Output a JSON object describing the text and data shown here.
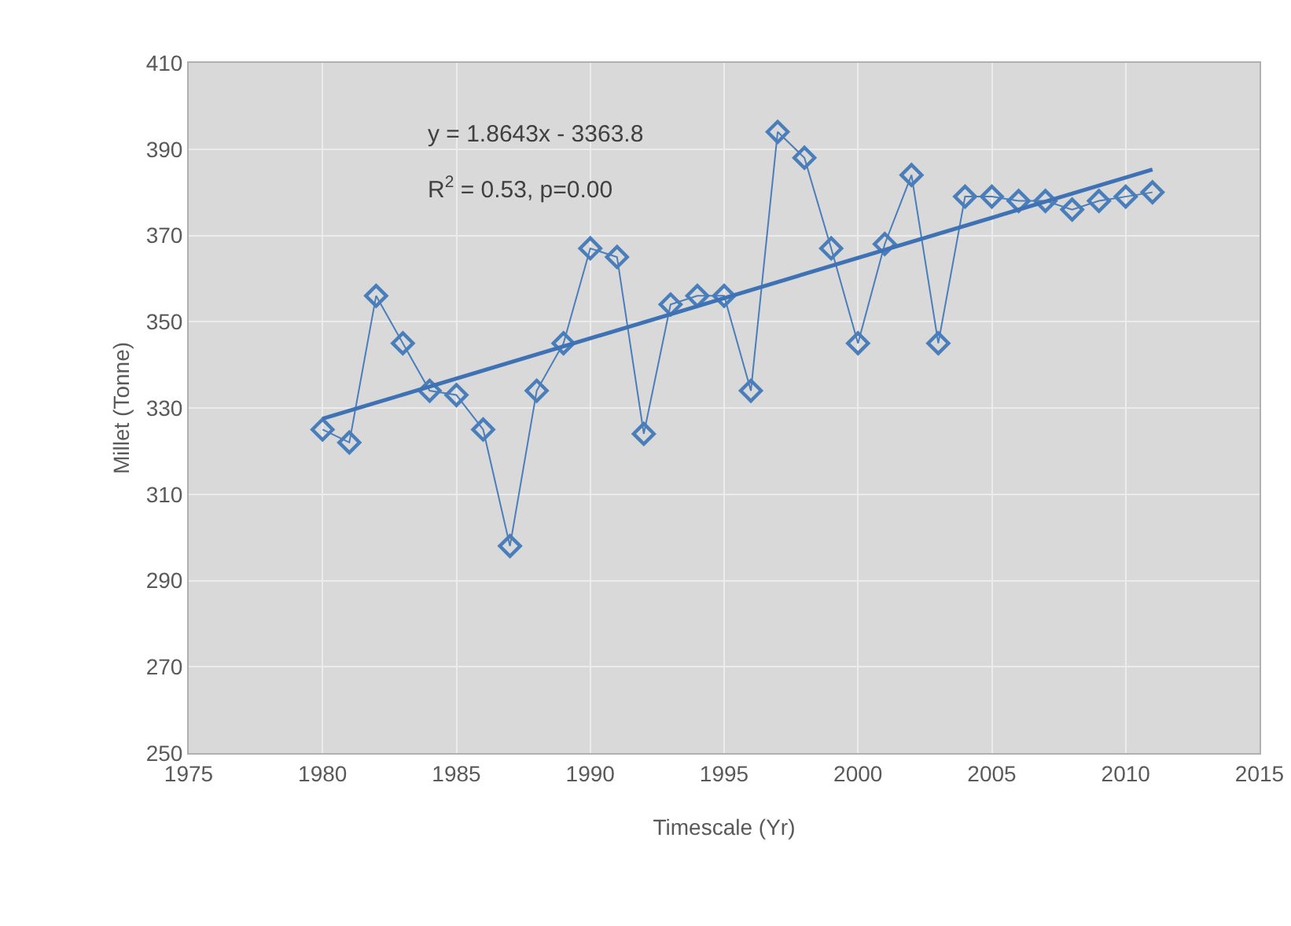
{
  "chart_data": {
    "type": "line",
    "xlabel": "Timescale (Yr)",
    "ylabel": "Millet (Tonne)",
    "xlim": [
      1975,
      2015
    ],
    "xticks": [
      1975,
      1980,
      1985,
      1990,
      1995,
      2000,
      2005,
      2010,
      2015
    ],
    "ylim": [
      250,
      410
    ],
    "yticks": [
      250,
      270,
      290,
      310,
      330,
      350,
      370,
      390,
      410
    ],
    "grid": true,
    "marker": "diamond",
    "annotations": [
      "y = 1.8643x - 3363.8",
      "R$^{2}$ = 0.53, p=0.00"
    ],
    "series": [
      {
        "color": "#4a7ebb",
        "x": [
          1980,
          1981,
          1982,
          1983,
          1984,
          1985,
          1986,
          1987,
          1988,
          1989,
          1990,
          1991,
          1992,
          1993,
          1994,
          1995,
          1996,
          1997,
          1998,
          1999,
          2000,
          2001,
          2002,
          2003,
          2004,
          2005,
          2006,
          2007,
          2008,
          2009,
          2010,
          2011
        ],
        "values": [
          325,
          322,
          356,
          345,
          334,
          333,
          325,
          298,
          334,
          345,
          367,
          365,
          324,
          354,
          356,
          356,
          334,
          394,
          388,
          367,
          345,
          368,
          384,
          345,
          379,
          379,
          378,
          378,
          376,
          378,
          379,
          380
        ]
      },
      {
        "type": "line",
        "marker": "none",
        "color": "#3f72b5",
        "x": [
          1980,
          2011
        ],
        "values": [
          327.5,
          385.3
        ]
      }
    ]
  }
}
